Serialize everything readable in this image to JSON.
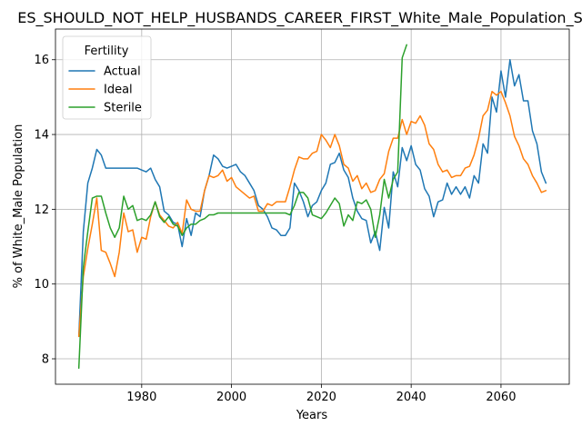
{
  "chart_data": {
    "type": "line",
    "title": "ES_SHOULD_NOT_HELP_HUSBANDS_CAREER_FIRST_White_Male_Population_S",
    "xlabel": "Years",
    "ylabel": "% of White_Male Population",
    "xlim": [
      1960.8,
      2075.2
    ],
    "ylim": [
      7.32,
      16.82
    ],
    "x_ticks": [
      1980,
      2000,
      2020,
      2040,
      2060
    ],
    "y_ticks": [
      8,
      10,
      12,
      14,
      16
    ],
    "grid": true,
    "legend": {
      "title": "Fertility",
      "placement": "top-left"
    },
    "series": [
      {
        "name": "Actual",
        "color": "#1f77b4",
        "points": [
          [
            1966,
            8.6
          ],
          [
            1967,
            11.4
          ],
          [
            1968,
            12.7
          ],
          [
            1969,
            13.1
          ],
          [
            1970,
            13.6
          ],
          [
            1971,
            13.45
          ],
          [
            1972,
            13.1
          ],
          [
            1973,
            13.1
          ],
          [
            1974,
            13.1
          ],
          [
            1975,
            13.1
          ],
          [
            1976,
            13.1
          ],
          [
            1977,
            13.1
          ],
          [
            1978,
            13.1
          ],
          [
            1979,
            13.1
          ],
          [
            1980,
            13.05
          ],
          [
            1981,
            13.0
          ],
          [
            1982,
            13.1
          ],
          [
            1983,
            12.8
          ],
          [
            1984,
            12.6
          ],
          [
            1985,
            11.95
          ],
          [
            1986,
            11.85
          ],
          [
            1987,
            11.65
          ],
          [
            1988,
            11.6
          ],
          [
            1989,
            11.0
          ],
          [
            1990,
            11.75
          ],
          [
            1991,
            11.3
          ],
          [
            1992,
            11.9
          ],
          [
            1993,
            11.8
          ],
          [
            1994,
            12.5
          ],
          [
            1995,
            12.9
          ],
          [
            1996,
            13.45
          ],
          [
            1997,
            13.35
          ],
          [
            1998,
            13.15
          ],
          [
            1999,
            13.1
          ],
          [
            2000,
            13.15
          ],
          [
            2001,
            13.2
          ],
          [
            2002,
            13.0
          ],
          [
            2003,
            12.9
          ],
          [
            2004,
            12.7
          ],
          [
            2005,
            12.5
          ],
          [
            2006,
            12.1
          ],
          [
            2007,
            12.0
          ],
          [
            2008,
            11.8
          ],
          [
            2009,
            11.5
          ],
          [
            2010,
            11.45
          ],
          [
            2011,
            11.3
          ],
          [
            2012,
            11.3
          ],
          [
            2013,
            11.5
          ],
          [
            2014,
            12.7
          ],
          [
            2015,
            12.5
          ],
          [
            2016,
            12.2
          ],
          [
            2017,
            11.8
          ],
          [
            2018,
            12.1
          ],
          [
            2019,
            12.2
          ],
          [
            2020,
            12.5
          ],
          [
            2021,
            12.7
          ],
          [
            2022,
            13.2
          ],
          [
            2023,
            13.25
          ],
          [
            2024,
            13.5
          ],
          [
            2025,
            13.05
          ],
          [
            2026,
            12.85
          ],
          [
            2027,
            12.3
          ],
          [
            2028,
            11.95
          ],
          [
            2029,
            11.75
          ],
          [
            2030,
            11.7
          ],
          [
            2031,
            11.1
          ],
          [
            2032,
            11.4
          ],
          [
            2033,
            10.9
          ],
          [
            2034,
            12.05
          ],
          [
            2035,
            11.5
          ],
          [
            2036,
            13.0
          ],
          [
            2037,
            12.6
          ],
          [
            2038,
            13.65
          ],
          [
            2039,
            13.3
          ],
          [
            2040,
            13.7
          ],
          [
            2041,
            13.2
          ],
          [
            2042,
            13.05
          ],
          [
            2043,
            12.55
          ],
          [
            2044,
            12.35
          ],
          [
            2045,
            11.8
          ],
          [
            2046,
            12.2
          ],
          [
            2047,
            12.25
          ],
          [
            2048,
            12.7
          ],
          [
            2049,
            12.4
          ],
          [
            2050,
            12.6
          ],
          [
            2051,
            12.4
          ],
          [
            2052,
            12.6
          ],
          [
            2053,
            12.3
          ],
          [
            2054,
            12.9
          ],
          [
            2055,
            12.7
          ],
          [
            2056,
            13.75
          ],
          [
            2057,
            13.5
          ],
          [
            2058,
            15.0
          ],
          [
            2059,
            14.6
          ],
          [
            2060,
            15.7
          ],
          [
            2061,
            15.0
          ],
          [
            2062,
            16.0
          ],
          [
            2063,
            15.3
          ],
          [
            2064,
            15.6
          ],
          [
            2065,
            14.9
          ],
          [
            2066,
            14.9
          ],
          [
            2067,
            14.1
          ],
          [
            2068,
            13.75
          ],
          [
            2069,
            13.0
          ],
          [
            2070,
            12.7
          ]
        ]
      },
      {
        "name": "Ideal",
        "color": "#ff7f0e",
        "points": [
          [
            1966,
            8.6
          ],
          [
            1967,
            10.2
          ],
          [
            1968,
            10.95
          ],
          [
            1969,
            11.6
          ],
          [
            1970,
            12.3
          ],
          [
            1971,
            10.9
          ],
          [
            1972,
            10.85
          ],
          [
            1973,
            10.55
          ],
          [
            1974,
            10.2
          ],
          [
            1975,
            10.85
          ],
          [
            1976,
            11.9
          ],
          [
            1977,
            11.4
          ],
          [
            1978,
            11.45
          ],
          [
            1979,
            10.85
          ],
          [
            1980,
            11.25
          ],
          [
            1981,
            11.2
          ],
          [
            1982,
            11.8
          ],
          [
            1983,
            12.2
          ],
          [
            1984,
            11.85
          ],
          [
            1985,
            11.7
          ],
          [
            1986,
            11.55
          ],
          [
            1987,
            11.5
          ],
          [
            1988,
            11.65
          ],
          [
            1989,
            11.35
          ],
          [
            1990,
            12.25
          ],
          [
            1991,
            12.0
          ],
          [
            1992,
            11.95
          ],
          [
            1993,
            11.95
          ],
          [
            1994,
            12.5
          ],
          [
            1995,
            12.9
          ],
          [
            1996,
            12.85
          ],
          [
            1997,
            12.9
          ],
          [
            1998,
            13.05
          ],
          [
            1999,
            12.75
          ],
          [
            2000,
            12.85
          ],
          [
            2001,
            12.6
          ],
          [
            2002,
            12.5
          ],
          [
            2003,
            12.4
          ],
          [
            2004,
            12.3
          ],
          [
            2005,
            12.35
          ],
          [
            2006,
            11.95
          ],
          [
            2007,
            11.95
          ],
          [
            2008,
            12.15
          ],
          [
            2009,
            12.1
          ],
          [
            2010,
            12.2
          ],
          [
            2011,
            12.2
          ],
          [
            2012,
            12.2
          ],
          [
            2013,
            12.6
          ],
          [
            2014,
            13.05
          ],
          [
            2015,
            13.4
          ],
          [
            2016,
            13.35
          ],
          [
            2017,
            13.35
          ],
          [
            2018,
            13.5
          ],
          [
            2019,
            13.55
          ],
          [
            2020,
            14.0
          ],
          [
            2021,
            13.85
          ],
          [
            2022,
            13.65
          ],
          [
            2023,
            14.0
          ],
          [
            2024,
            13.7
          ],
          [
            2025,
            13.2
          ],
          [
            2026,
            13.1
          ],
          [
            2027,
            12.75
          ],
          [
            2028,
            12.9
          ],
          [
            2029,
            12.55
          ],
          [
            2030,
            12.7
          ],
          [
            2031,
            12.45
          ],
          [
            2032,
            12.5
          ],
          [
            2033,
            12.8
          ],
          [
            2034,
            12.95
          ],
          [
            2035,
            13.55
          ],
          [
            2036,
            13.9
          ],
          [
            2037,
            13.9
          ],
          [
            2038,
            14.4
          ],
          [
            2039,
            14.0
          ],
          [
            2040,
            14.35
          ],
          [
            2041,
            14.3
          ],
          [
            2042,
            14.5
          ],
          [
            2043,
            14.25
          ],
          [
            2044,
            13.75
          ],
          [
            2045,
            13.6
          ],
          [
            2046,
            13.2
          ],
          [
            2047,
            13.0
          ],
          [
            2048,
            13.05
          ],
          [
            2049,
            12.85
          ],
          [
            2050,
            12.9
          ],
          [
            2051,
            12.9
          ],
          [
            2052,
            13.1
          ],
          [
            2053,
            13.15
          ],
          [
            2054,
            13.45
          ],
          [
            2055,
            13.9
          ],
          [
            2056,
            14.5
          ],
          [
            2057,
            14.65
          ],
          [
            2058,
            15.15
          ],
          [
            2059,
            15.05
          ],
          [
            2060,
            15.15
          ],
          [
            2061,
            14.85
          ],
          [
            2062,
            14.5
          ],
          [
            2063,
            13.95
          ],
          [
            2064,
            13.7
          ],
          [
            2065,
            13.35
          ],
          [
            2066,
            13.2
          ],
          [
            2067,
            12.9
          ],
          [
            2068,
            12.7
          ],
          [
            2069,
            12.45
          ],
          [
            2070,
            12.5
          ]
        ]
      },
      {
        "name": "Sterile",
        "color": "#2ca02c",
        "points": [
          [
            1966,
            7.75
          ],
          [
            1967,
            10.45
          ],
          [
            1968,
            11.4
          ],
          [
            1969,
            12.3
          ],
          [
            1970,
            12.35
          ],
          [
            1971,
            12.35
          ],
          [
            1972,
            11.9
          ],
          [
            1973,
            11.5
          ],
          [
            1974,
            11.25
          ],
          [
            1975,
            11.5
          ],
          [
            1976,
            12.35
          ],
          [
            1977,
            12.0
          ],
          [
            1978,
            12.1
          ],
          [
            1979,
            11.7
          ],
          [
            1980,
            11.75
          ],
          [
            1981,
            11.7
          ],
          [
            1982,
            11.85
          ],
          [
            1983,
            12.2
          ],
          [
            1984,
            11.8
          ],
          [
            1985,
            11.65
          ],
          [
            1986,
            11.8
          ],
          [
            1987,
            11.6
          ],
          [
            1988,
            11.55
          ],
          [
            1989,
            11.3
          ],
          [
            1990,
            11.5
          ],
          [
            1991,
            11.6
          ],
          [
            1992,
            11.6
          ],
          [
            1993,
            11.7
          ],
          [
            1994,
            11.75
          ],
          [
            1995,
            11.85
          ],
          [
            1996,
            11.85
          ],
          [
            1997,
            11.9
          ],
          [
            1998,
            11.9
          ],
          [
            1999,
            11.9
          ],
          [
            2000,
            11.9
          ],
          [
            2001,
            11.9
          ],
          [
            2002,
            11.9
          ],
          [
            2003,
            11.9
          ],
          [
            2004,
            11.9
          ],
          [
            2005,
            11.9
          ],
          [
            2006,
            11.9
          ],
          [
            2007,
            11.9
          ],
          [
            2008,
            11.9
          ],
          [
            2009,
            11.9
          ],
          [
            2010,
            11.9
          ],
          [
            2011,
            11.9
          ],
          [
            2012,
            11.9
          ],
          [
            2013,
            11.85
          ],
          [
            2014,
            12.1
          ],
          [
            2015,
            12.45
          ],
          [
            2016,
            12.45
          ],
          [
            2017,
            12.3
          ],
          [
            2018,
            11.85
          ],
          [
            2019,
            11.8
          ],
          [
            2020,
            11.75
          ],
          [
            2021,
            11.9
          ],
          [
            2022,
            12.1
          ],
          [
            2023,
            12.3
          ],
          [
            2024,
            12.15
          ],
          [
            2025,
            11.55
          ],
          [
            2026,
            11.85
          ],
          [
            2027,
            11.7
          ],
          [
            2028,
            12.2
          ],
          [
            2029,
            12.15
          ],
          [
            2030,
            12.25
          ],
          [
            2031,
            12.0
          ],
          [
            2032,
            11.25
          ],
          [
            2033,
            11.85
          ],
          [
            2034,
            12.8
          ],
          [
            2035,
            12.3
          ],
          [
            2036,
            12.8
          ],
          [
            2037,
            13.0
          ],
          [
            2038,
            16.05
          ],
          [
            2039,
            16.4
          ]
        ]
      }
    ]
  }
}
